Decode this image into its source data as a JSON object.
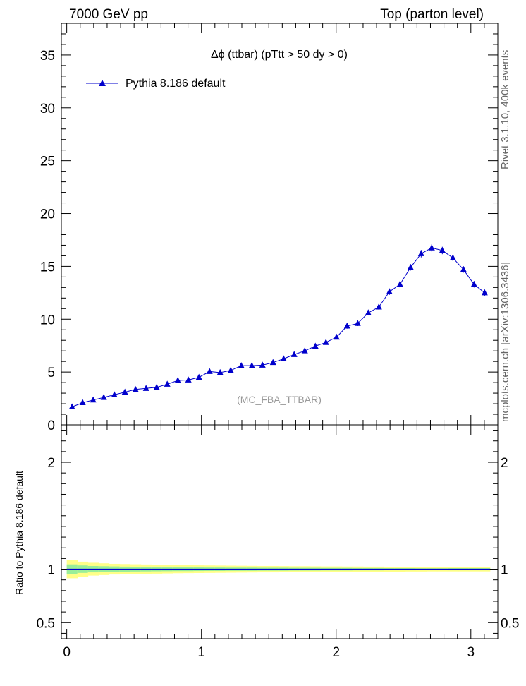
{
  "header": {
    "left": "7000 GeV pp",
    "right": "Top (parton level)"
  },
  "side": {
    "rivet": "Rivet 3.1.10,  400k events",
    "mcplots": "mcplots.cern.ch [arXiv:1306.3436]"
  },
  "chart_data": {
    "type": "line",
    "title": "Δϕ (ttbar) (pTtt > 50 dy > 0)",
    "watermark": "(MC_FBA_TTBAR)",
    "legend": {
      "label": "Pythia 8.186 default",
      "position": "top-left",
      "color": "#0000cc"
    },
    "xlim": [
      -0.04,
      3.2
    ],
    "ylim": [
      0,
      38
    ],
    "yticks": [
      0,
      5,
      10,
      15,
      20,
      25,
      30,
      35
    ],
    "xticks": [
      0,
      1,
      2,
      3
    ],
    "series": [
      {
        "name": "Pythia 8.186 default",
        "x": [
          0.0393,
          0.1178,
          0.1963,
          0.2749,
          0.3534,
          0.432,
          0.5105,
          0.589,
          0.6676,
          0.7461,
          0.8247,
          0.9032,
          0.9817,
          1.0603,
          1.1388,
          1.2174,
          1.2959,
          1.3744,
          1.453,
          1.5315,
          1.6101,
          1.6886,
          1.7671,
          1.8457,
          1.9242,
          2.0028,
          2.0813,
          2.1598,
          2.2384,
          2.3169,
          2.3955,
          2.474,
          2.5525,
          2.6311,
          2.7096,
          2.7882,
          2.8667,
          2.9452,
          3.0238,
          3.1023
        ],
        "y": [
          1.7,
          2.1,
          2.35,
          2.6,
          2.85,
          3.1,
          3.35,
          3.45,
          3.55,
          3.85,
          4.2,
          4.25,
          4.5,
          5.05,
          4.95,
          5.15,
          5.6,
          5.6,
          5.65,
          5.9,
          6.25,
          6.65,
          7.0,
          7.45,
          7.8,
          8.3,
          9.35,
          9.6,
          10.6,
          11.15,
          12.6,
          13.3,
          14.9,
          16.2,
          16.75,
          16.5,
          15.8,
          14.7,
          13.3,
          12.5
        ],
        "yerr": [
          0.15,
          0.15,
          0.15,
          0.15,
          0.15,
          0.15,
          0.15,
          0.15,
          0.15,
          0.15,
          0.15,
          0.15,
          0.15,
          0.15,
          0.15,
          0.15,
          0.15,
          0.15,
          0.15,
          0.15,
          0.2,
          0.2,
          0.2,
          0.2,
          0.2,
          0.2,
          0.25,
          0.25,
          0.25,
          0.25,
          0.3,
          0.3,
          0.3,
          0.35,
          0.35,
          0.35,
          0.3,
          0.3,
          0.3,
          0.3
        ]
      }
    ],
    "ratio": {
      "ylabel": "Ratio to Pythia 8.186 default",
      "ylim": [
        0.35,
        2.35
      ],
      "yticks": [
        0.5,
        1,
        2
      ],
      "ytick_labels": [
        "0.5",
        "1",
        "2"
      ],
      "band_inner_halfwidth": [
        0.045,
        0.035,
        0.03,
        0.028,
        0.026,
        0.024,
        0.022,
        0.021,
        0.02,
        0.019,
        0.018,
        0.018,
        0.017,
        0.016,
        0.016,
        0.015,
        0.015,
        0.015,
        0.014,
        0.014,
        0.014,
        0.013,
        0.013,
        0.013,
        0.012,
        0.012,
        0.012,
        0.011,
        0.011,
        0.011,
        0.01,
        0.01,
        0.01,
        0.009,
        0.009,
        0.009,
        0.01,
        0.01,
        0.01,
        0.01
      ],
      "band_outer_halfwidth": [
        0.085,
        0.07,
        0.06,
        0.055,
        0.05,
        0.048,
        0.046,
        0.044,
        0.042,
        0.04,
        0.038,
        0.037,
        0.036,
        0.035,
        0.034,
        0.033,
        0.032,
        0.031,
        0.03,
        0.03,
        0.029,
        0.028,
        0.028,
        0.027,
        0.026,
        0.026,
        0.025,
        0.025,
        0.024,
        0.024,
        0.023,
        0.023,
        0.022,
        0.022,
        0.021,
        0.021,
        0.021,
        0.021,
        0.021,
        0.021
      ],
      "inner_color": "#99ee99",
      "outer_color": "#ffff88"
    }
  }
}
